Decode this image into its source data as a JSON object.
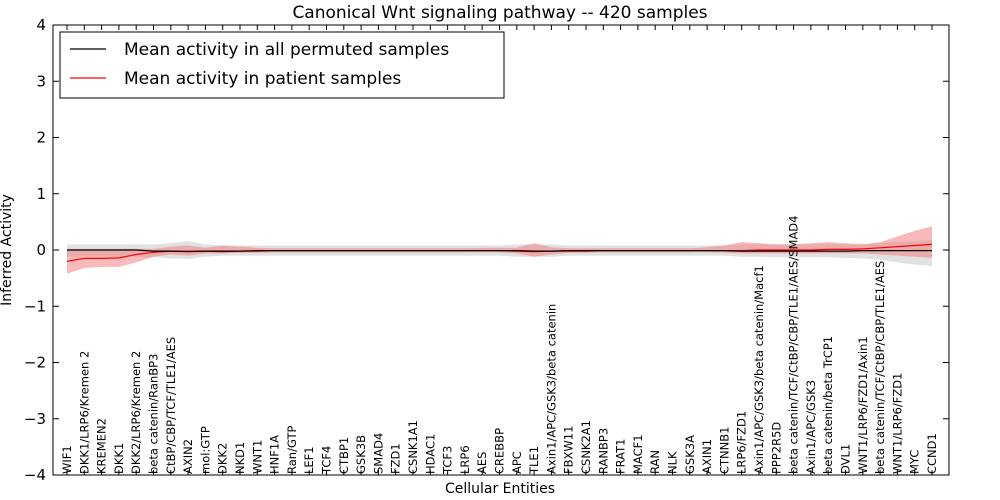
{
  "chart_data": {
    "type": "line",
    "title": "Canonical Wnt signaling pathway -- 420 samples",
    "xlabel": "Cellular Entities",
    "ylabel": "Inferred Activity",
    "ylim": [
      -4,
      4
    ],
    "yticks": [
      -4,
      -3,
      -2,
      -1,
      0,
      1,
      2,
      3,
      4
    ],
    "ytick_labels": [
      "−4",
      "−3",
      "−2",
      "−1",
      "0",
      "1",
      "2",
      "3",
      "4"
    ],
    "grid": false,
    "legend_position": "top-left",
    "categories": [
      "WIF1",
      "DKK1/LRP6/Kremen 2",
      "KREMEN2",
      "DKK1",
      "DKK2/LRP6/Kremen 2",
      "beta catenin/RanBP3",
      "CtBP/CBP/TCF/TLE1/AES",
      "AXIN2",
      "mol:GTP",
      "DKK2",
      "NKD1",
      "WNT1",
      "HNF1A",
      "Ran/GTP",
      "LEF1",
      "TCF4",
      "CTBP1",
      "GSK3B",
      "SMAD4",
      "FZD1",
      "CSNK1A1",
      "HDAC1",
      "TCF3",
      "LRP6",
      "AES",
      "CREBBP",
      "APC",
      "TLE1",
      "Axin1/APC/GSK3/beta catenin",
      "FBXW11",
      "CSNK2A1",
      "RANBP3",
      "FRAT1",
      "MACF1",
      "RAN",
      "NLK",
      "GSK3A",
      "AXIN1",
      "CTNNB1",
      "LRP6/FZD1",
      "Axin1/APC/GSK3/beta catenin/Macf1",
      "PPP2R5D",
      "beta catenin/TCF/CtBP/CBP/TLE1/AES/SMAD4",
      "Axin1/APC/GSK3",
      "beta catenin/beta TrCP1",
      "DVL1",
      "WNT1/LRP6/FZD1/Axin1",
      "beta catenin/TCF/CtBP/CBP/TLE1/AES",
      "WNT1/LRP6/FZD1",
      "MYC",
      "CCND1"
    ],
    "series": [
      {
        "name": "Mean activity in all permuted samples",
        "color": "#000000",
        "values": [
          0,
          0,
          0,
          0,
          0,
          -0.02,
          -0.02,
          -0.03,
          -0.02,
          -0.02,
          -0.02,
          -0.01,
          -0.01,
          -0.01,
          -0.01,
          -0.01,
          -0.01,
          -0.01,
          -0.01,
          -0.01,
          -0.01,
          -0.01,
          -0.01,
          -0.01,
          -0.01,
          -0.01,
          -0.01,
          -0.02,
          -0.02,
          -0.01,
          -0.01,
          -0.01,
          -0.01,
          -0.01,
          -0.01,
          -0.01,
          -0.01,
          -0.01,
          -0.01,
          -0.02,
          -0.02,
          -0.02,
          -0.02,
          -0.02,
          -0.02,
          -0.02,
          -0.01,
          -0.01,
          -0.01,
          -0.01,
          -0.01
        ],
        "lower": [
          -0.12,
          -0.12,
          -0.12,
          -0.12,
          -0.12,
          -0.13,
          -0.15,
          -0.16,
          -0.12,
          -0.1,
          -0.1,
          -0.1,
          -0.1,
          -0.1,
          -0.1,
          -0.1,
          -0.1,
          -0.1,
          -0.1,
          -0.1,
          -0.1,
          -0.1,
          -0.1,
          -0.1,
          -0.1,
          -0.1,
          -0.12,
          -0.12,
          -0.12,
          -0.1,
          -0.1,
          -0.1,
          -0.1,
          -0.1,
          -0.1,
          -0.1,
          -0.1,
          -0.1,
          -0.1,
          -0.12,
          -0.12,
          -0.13,
          -0.13,
          -0.13,
          -0.13,
          -0.14,
          -0.15,
          -0.17,
          -0.22,
          -0.26,
          -0.28
        ],
        "upper": [
          0.1,
          0.1,
          0.1,
          0.1,
          0.1,
          0.1,
          0.12,
          0.16,
          0.1,
          0.08,
          0.08,
          0.08,
          0.08,
          0.08,
          0.08,
          0.08,
          0.08,
          0.08,
          0.08,
          0.08,
          0.08,
          0.08,
          0.08,
          0.08,
          0.08,
          0.08,
          0.1,
          0.1,
          0.1,
          0.08,
          0.08,
          0.08,
          0.08,
          0.08,
          0.08,
          0.08,
          0.08,
          0.08,
          0.08,
          0.1,
          0.1,
          0.1,
          0.1,
          0.1,
          0.1,
          0.1,
          0.1,
          0.12,
          0.14,
          0.16,
          0.18
        ]
      },
      {
        "name": "Mean activity in patient samples",
        "color": "#ff0000",
        "band_color": "#f08080",
        "values": [
          -0.2,
          -0.15,
          -0.15,
          -0.14,
          -0.08,
          -0.04,
          -0.02,
          -0.02,
          -0.02,
          -0.03,
          -0.02,
          -0.02,
          -0.01,
          -0.01,
          -0.01,
          -0.01,
          -0.01,
          -0.01,
          -0.01,
          -0.01,
          -0.01,
          -0.01,
          -0.01,
          -0.01,
          -0.01,
          -0.01,
          -0.02,
          -0.03,
          -0.02,
          -0.02,
          -0.02,
          -0.01,
          -0.01,
          -0.01,
          -0.01,
          -0.01,
          -0.01,
          -0.01,
          -0.01,
          -0.01,
          0,
          0,
          0,
          0,
          0.01,
          0.01,
          0.02,
          0.04,
          0.06,
          0.08,
          0.1
        ],
        "lower": [
          -0.42,
          -0.32,
          -0.3,
          -0.3,
          -0.22,
          -0.12,
          -0.08,
          -0.1,
          -0.06,
          -0.06,
          -0.05,
          -0.05,
          -0.04,
          -0.04,
          -0.04,
          -0.04,
          -0.04,
          -0.04,
          -0.04,
          -0.04,
          -0.04,
          -0.04,
          -0.04,
          -0.04,
          -0.04,
          -0.04,
          -0.06,
          -0.12,
          -0.08,
          -0.05,
          -0.05,
          -0.04,
          -0.04,
          -0.04,
          -0.04,
          -0.04,
          -0.04,
          -0.04,
          -0.05,
          -0.06,
          -0.06,
          -0.06,
          -0.06,
          -0.06,
          -0.06,
          -0.06,
          -0.06,
          -0.08,
          -0.1,
          -0.12,
          -0.14
        ],
        "upper": [
          0.02,
          0.02,
          0.02,
          0.02,
          0.02,
          0.02,
          0.06,
          0.08,
          0.04,
          0.08,
          0.06,
          0.04,
          0.03,
          0.03,
          0.03,
          0.03,
          0.03,
          0.03,
          0.03,
          0.03,
          0.03,
          0.03,
          0.03,
          0.03,
          0.04,
          0.04,
          0.04,
          0.12,
          0.05,
          0.03,
          0.03,
          0.03,
          0.03,
          0.03,
          0.03,
          0.03,
          0.03,
          0.05,
          0.08,
          0.14,
          0.12,
          0.1,
          0.1,
          0.12,
          0.14,
          0.12,
          0.1,
          0.14,
          0.24,
          0.34,
          0.42
        ]
      }
    ]
  }
}
